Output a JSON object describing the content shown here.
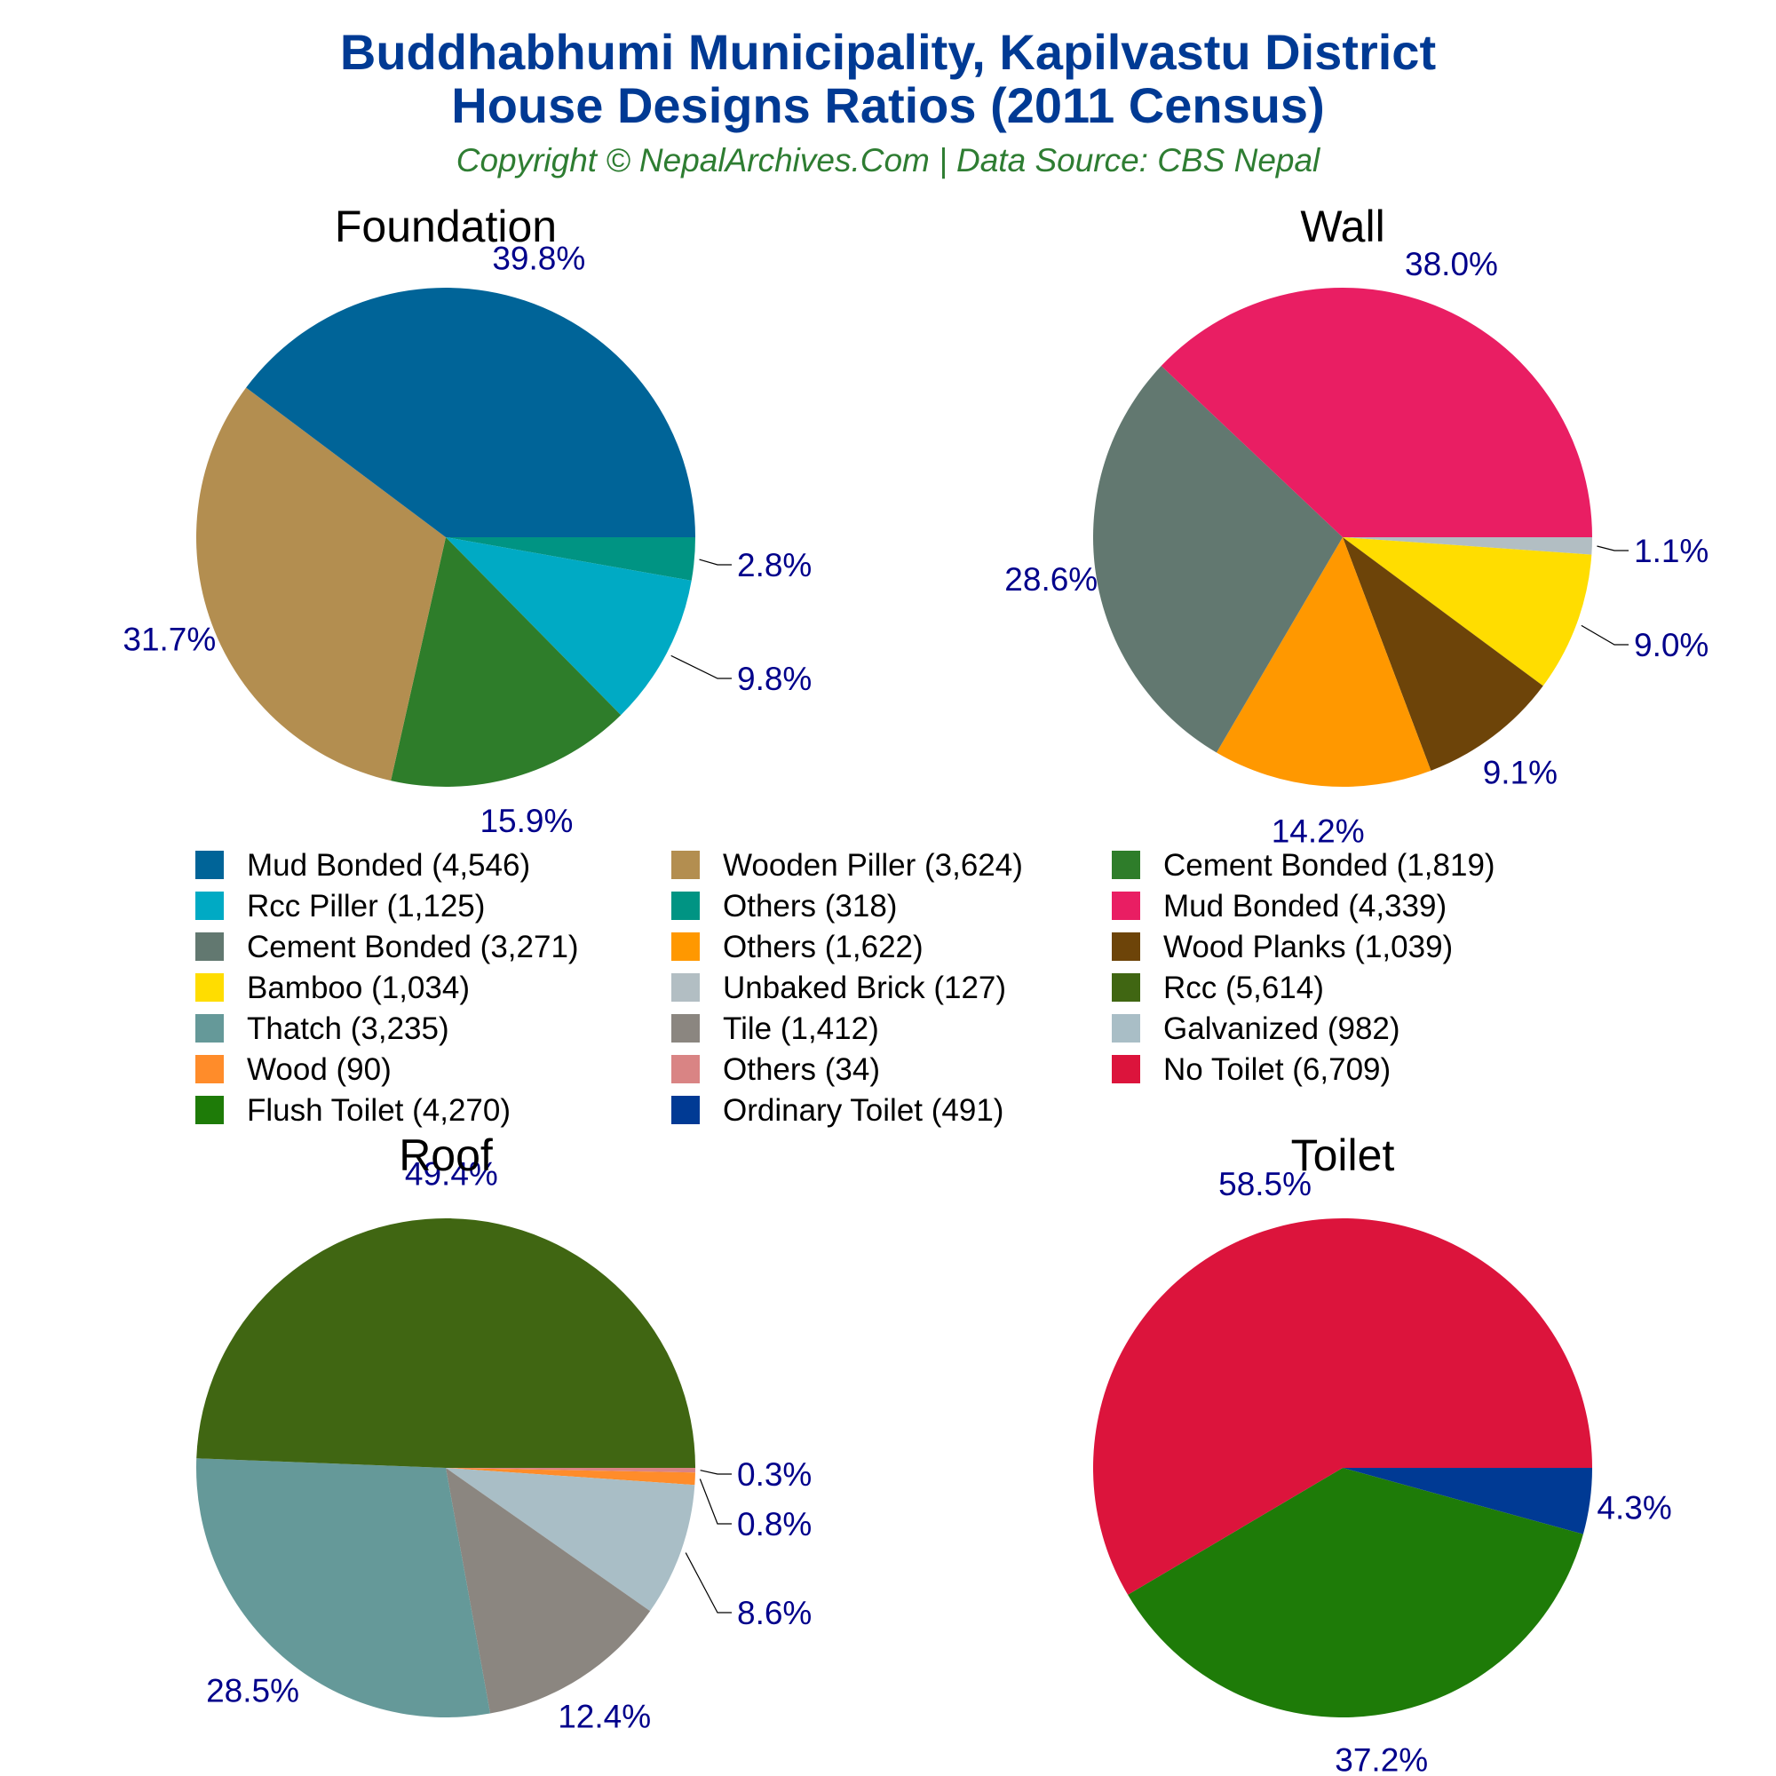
{
  "header": {
    "title_line1": "Buddhabhumi Municipality, Kapilvastu District",
    "title_line2": "House Designs Ratios (2011 Census)",
    "subtitle": "Copyright © NepalArchives.Com | Data Source: CBS Nepal"
  },
  "chart_data": [
    {
      "type": "pie",
      "title": "Foundation",
      "slices": [
        {
          "label": "Mud Bonded",
          "value": 4546,
          "percent": "39.8%",
          "color": "#006498"
        },
        {
          "label": "Wooden Piller",
          "value": 3624,
          "percent": "31.7%",
          "color": "#b38e50"
        },
        {
          "label": "Cement Bonded",
          "value": 1819,
          "percent": "15.9%",
          "color": "#2e7d2a"
        },
        {
          "label": "Rcc Piller",
          "value": 1125,
          "percent": "9.8%",
          "color": "#00aac4"
        },
        {
          "label": "Others",
          "value": 318,
          "percent": "2.8%",
          "color": "#009483"
        }
      ]
    },
    {
      "type": "pie",
      "title": "Wall",
      "slices": [
        {
          "label": "Mud Bonded",
          "value": 4339,
          "percent": "38.0%",
          "color": "#e91e63"
        },
        {
          "label": "Cement Bonded",
          "value": 3271,
          "percent": "28.6%",
          "color": "#627870"
        },
        {
          "label": "Others",
          "value": 1622,
          "percent": "14.2%",
          "color": "#ff9800"
        },
        {
          "label": "Wood Planks",
          "value": 1039,
          "percent": "9.1%",
          "color": "#6d4409"
        },
        {
          "label": "Bamboo",
          "value": 1034,
          "percent": "9.0%",
          "color": "#ffdd00"
        },
        {
          "label": "Unbaked Brick",
          "value": 127,
          "percent": "1.1%",
          "color": "#b2bec3"
        }
      ]
    },
    {
      "type": "pie",
      "title": "Roof",
      "slices": [
        {
          "label": "Rcc",
          "value": 5614,
          "percent": "49.4%",
          "color": "#406612"
        },
        {
          "label": "Thatch",
          "value": 3235,
          "percent": "28.5%",
          "color": "#659999"
        },
        {
          "label": "Tile",
          "value": 1412,
          "percent": "12.4%",
          "color": "#8b8680"
        },
        {
          "label": "Galvanized",
          "value": 982,
          "percent": "8.6%",
          "color": "#a9bec6"
        },
        {
          "label": "Wood",
          "value": 90,
          "percent": "0.8%",
          "color": "#ff8c2a"
        },
        {
          "label": "Others",
          "value": 34,
          "percent": "0.3%",
          "color": "#d98484"
        }
      ]
    },
    {
      "type": "pie",
      "title": "Toilet",
      "slices": [
        {
          "label": "No Toilet",
          "value": 6709,
          "percent": "58.5%",
          "color": "#dc143c"
        },
        {
          "label": "Flush Toilet",
          "value": 4270,
          "percent": "37.2%",
          "color": "#1e7b08"
        },
        {
          "label": "Ordinary Toilet",
          "value": 491,
          "percent": "4.3%",
          "color": "#003a94"
        }
      ]
    }
  ],
  "legend": [
    {
      "text": "Mud Bonded (4,546)",
      "color": "#006498"
    },
    {
      "text": "Wooden Piller (3,624)",
      "color": "#b38e50"
    },
    {
      "text": "Cement Bonded (1,819)",
      "color": "#2e7d2a"
    },
    {
      "text": "Rcc Piller (1,125)",
      "color": "#00aac4"
    },
    {
      "text": "Others (318)",
      "color": "#009483"
    },
    {
      "text": "Mud Bonded (4,339)",
      "color": "#e91e63"
    },
    {
      "text": "Cement Bonded (3,271)",
      "color": "#627870"
    },
    {
      "text": "Others (1,622)",
      "color": "#ff9800"
    },
    {
      "text": "Wood Planks (1,039)",
      "color": "#6d4409"
    },
    {
      "text": "Bamboo (1,034)",
      "color": "#ffdd00"
    },
    {
      "text": "Unbaked Brick (127)",
      "color": "#b2bec3"
    },
    {
      "text": "Rcc (5,614)",
      "color": "#406612"
    },
    {
      "text": "Thatch (3,235)",
      "color": "#659999"
    },
    {
      "text": "Tile (1,412)",
      "color": "#8b8680"
    },
    {
      "text": "Galvanized (982)",
      "color": "#a9bec6"
    },
    {
      "text": "Wood (90)",
      "color": "#ff8c2a"
    },
    {
      "text": "Others (34)",
      "color": "#d98484"
    },
    {
      "text": "No Toilet (6,709)",
      "color": "#dc143c"
    },
    {
      "text": "Flush Toilet (4,270)",
      "color": "#1e7b08"
    },
    {
      "text": "Ordinary Toilet (491)",
      "color": "#003a94"
    }
  ]
}
